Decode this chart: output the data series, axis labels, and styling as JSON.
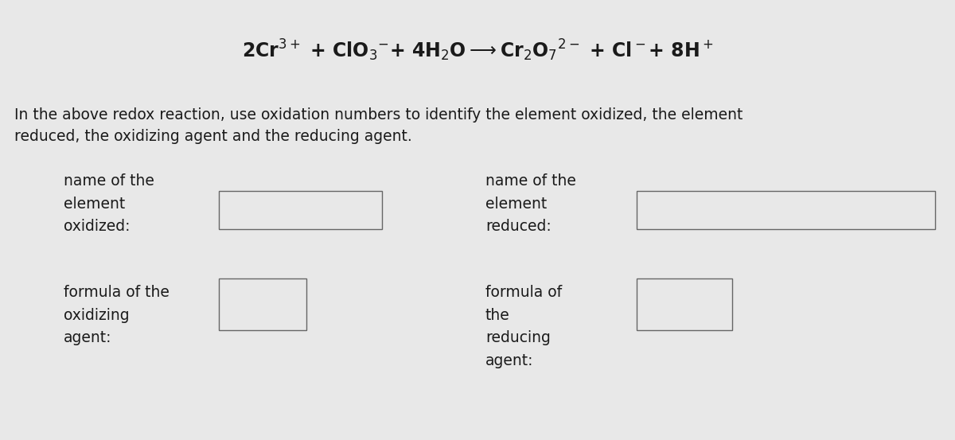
{
  "bg_color": "#e8e8e8",
  "text_color": "#1a1a1a",
  "title_fontsize": 17,
  "body_fontsize": 13.5,
  "label_fontsize": 13.5,
  "body_text": "In the above redox reaction, use oxidation numbers to identify the element oxidized, the element\nreduced, the oxidizing agent and the reducing agent.",
  "label1": "name of the\nelement\noxidized:",
  "label2": "formula of the\noxidizing\nagent:",
  "label3": "name of the\nelement\nreduced:",
  "label4": "formula of\nthe\nreducing\nagent:",
  "line_color": "#555555",
  "box_edge_color": "#666666"
}
